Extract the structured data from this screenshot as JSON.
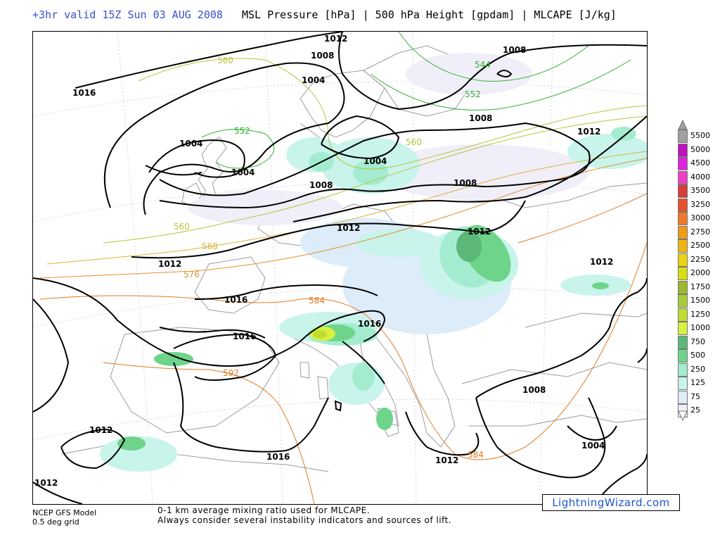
{
  "header": {
    "valid_time": "+3hr valid 15Z Sun 03 AUG 2008",
    "fields": "MSL Pressure [hPa] | 500 hPa Height [gpdam] | MLCAPE [J/kg]"
  },
  "isobar_labels": [
    {
      "id": "1012-n",
      "text": "1012"
    },
    {
      "id": "1008-n",
      "text": "1008"
    },
    {
      "id": "1004-n",
      "text": "1004"
    },
    {
      "id": "1016-nw",
      "text": "1016"
    },
    {
      "id": "1004-w1",
      "text": "1004"
    },
    {
      "id": "1004-w2",
      "text": "1004"
    },
    {
      "id": "1008-ne",
      "text": "1008"
    },
    {
      "id": "1008-ce",
      "text": "1008"
    },
    {
      "id": "1004-c",
      "text": "1004"
    },
    {
      "id": "1012-ene",
      "text": "1012"
    },
    {
      "id": "1008-c2",
      "text": "1008"
    },
    {
      "id": "1008-cc",
      "text": "1008"
    },
    {
      "id": "1012-c",
      "text": "1012"
    },
    {
      "id": "1012-e",
      "text": "1012"
    },
    {
      "id": "1012-w",
      "text": "1012"
    },
    {
      "id": "1012-se",
      "text": "1012"
    },
    {
      "id": "1016-w",
      "text": "1016"
    },
    {
      "id": "1016-c",
      "text": "1016"
    },
    {
      "id": "1016-sw",
      "text": "1016"
    },
    {
      "id": "1008-se",
      "text": "1008"
    },
    {
      "id": "1004-se",
      "text": "1004"
    },
    {
      "id": "1012-sw",
      "text": "1012"
    },
    {
      "id": "1016-s",
      "text": "1016"
    },
    {
      "id": "1012-gr",
      "text": "1012"
    },
    {
      "id": "1012-swc",
      "text": "1012"
    }
  ],
  "height_labels": [
    {
      "id": "560-n",
      "text": "560",
      "color": "#b9c33a"
    },
    {
      "id": "544",
      "text": "544",
      "color": "#2fb32f"
    },
    {
      "id": "552-ne",
      "text": "552",
      "color": "#2fb32f"
    },
    {
      "id": "552-w",
      "text": "552",
      "color": "#2fb32f"
    },
    {
      "id": "560-c",
      "text": "560",
      "color": "#b9c33a"
    },
    {
      "id": "560-w",
      "text": "560",
      "color": "#b9c33a"
    },
    {
      "id": "568",
      "text": "568",
      "color": "#d9b23a"
    },
    {
      "id": "576",
      "text": "576",
      "color": "#e0902a"
    },
    {
      "id": "584-c",
      "text": "584",
      "color": "#e07a20"
    },
    {
      "id": "592",
      "text": "592",
      "color": "#e07a20"
    },
    {
      "id": "584-se",
      "text": "584",
      "color": "#e07a20"
    }
  ],
  "cape_scale": [
    {
      "value": "5500",
      "color": "#a0a0a0"
    },
    {
      "value": "5000",
      "color": "#c010c0"
    },
    {
      "value": "4500",
      "color": "#e020e0"
    },
    {
      "value": "4000",
      "color": "#f040c8"
    },
    {
      "value": "3500",
      "color": "#d83c3c"
    },
    {
      "value": "3250",
      "color": "#e8502c"
    },
    {
      "value": "3000",
      "color": "#f07828"
    },
    {
      "value": "2750",
      "color": "#f09c14"
    },
    {
      "value": "2500",
      "color": "#f0b414"
    },
    {
      "value": "2250",
      "color": "#ecd214"
    },
    {
      "value": "2000",
      "color": "#d8e010"
    },
    {
      "value": "1750",
      "color": "#9ab82c"
    },
    {
      "value": "1500",
      "color": "#a8cc38"
    },
    {
      "value": "1250",
      "color": "#c0dc30"
    },
    {
      "value": "1000",
      "color": "#d8f040"
    },
    {
      "value": "750",
      "color": "#5cb878"
    },
    {
      "value": "500",
      "color": "#6ed48a"
    },
    {
      "value": "250",
      "color": "#a4ecd0"
    },
    {
      "value": "125",
      "color": "#c8f4ec"
    },
    {
      "value": "75",
      "color": "#dcecf8"
    },
    {
      "value": "25",
      "color": "#f0eef8"
    }
  ],
  "footer": {
    "model_line1": "NCEP GFS Model",
    "model_line2": "0.5 deg grid",
    "note_line1": "0-1 km average mixing ratio used for MLCAPE.",
    "note_line2": "Always consider several instability indicators and sources of lift."
  },
  "brand": "LightningWizard.com"
}
